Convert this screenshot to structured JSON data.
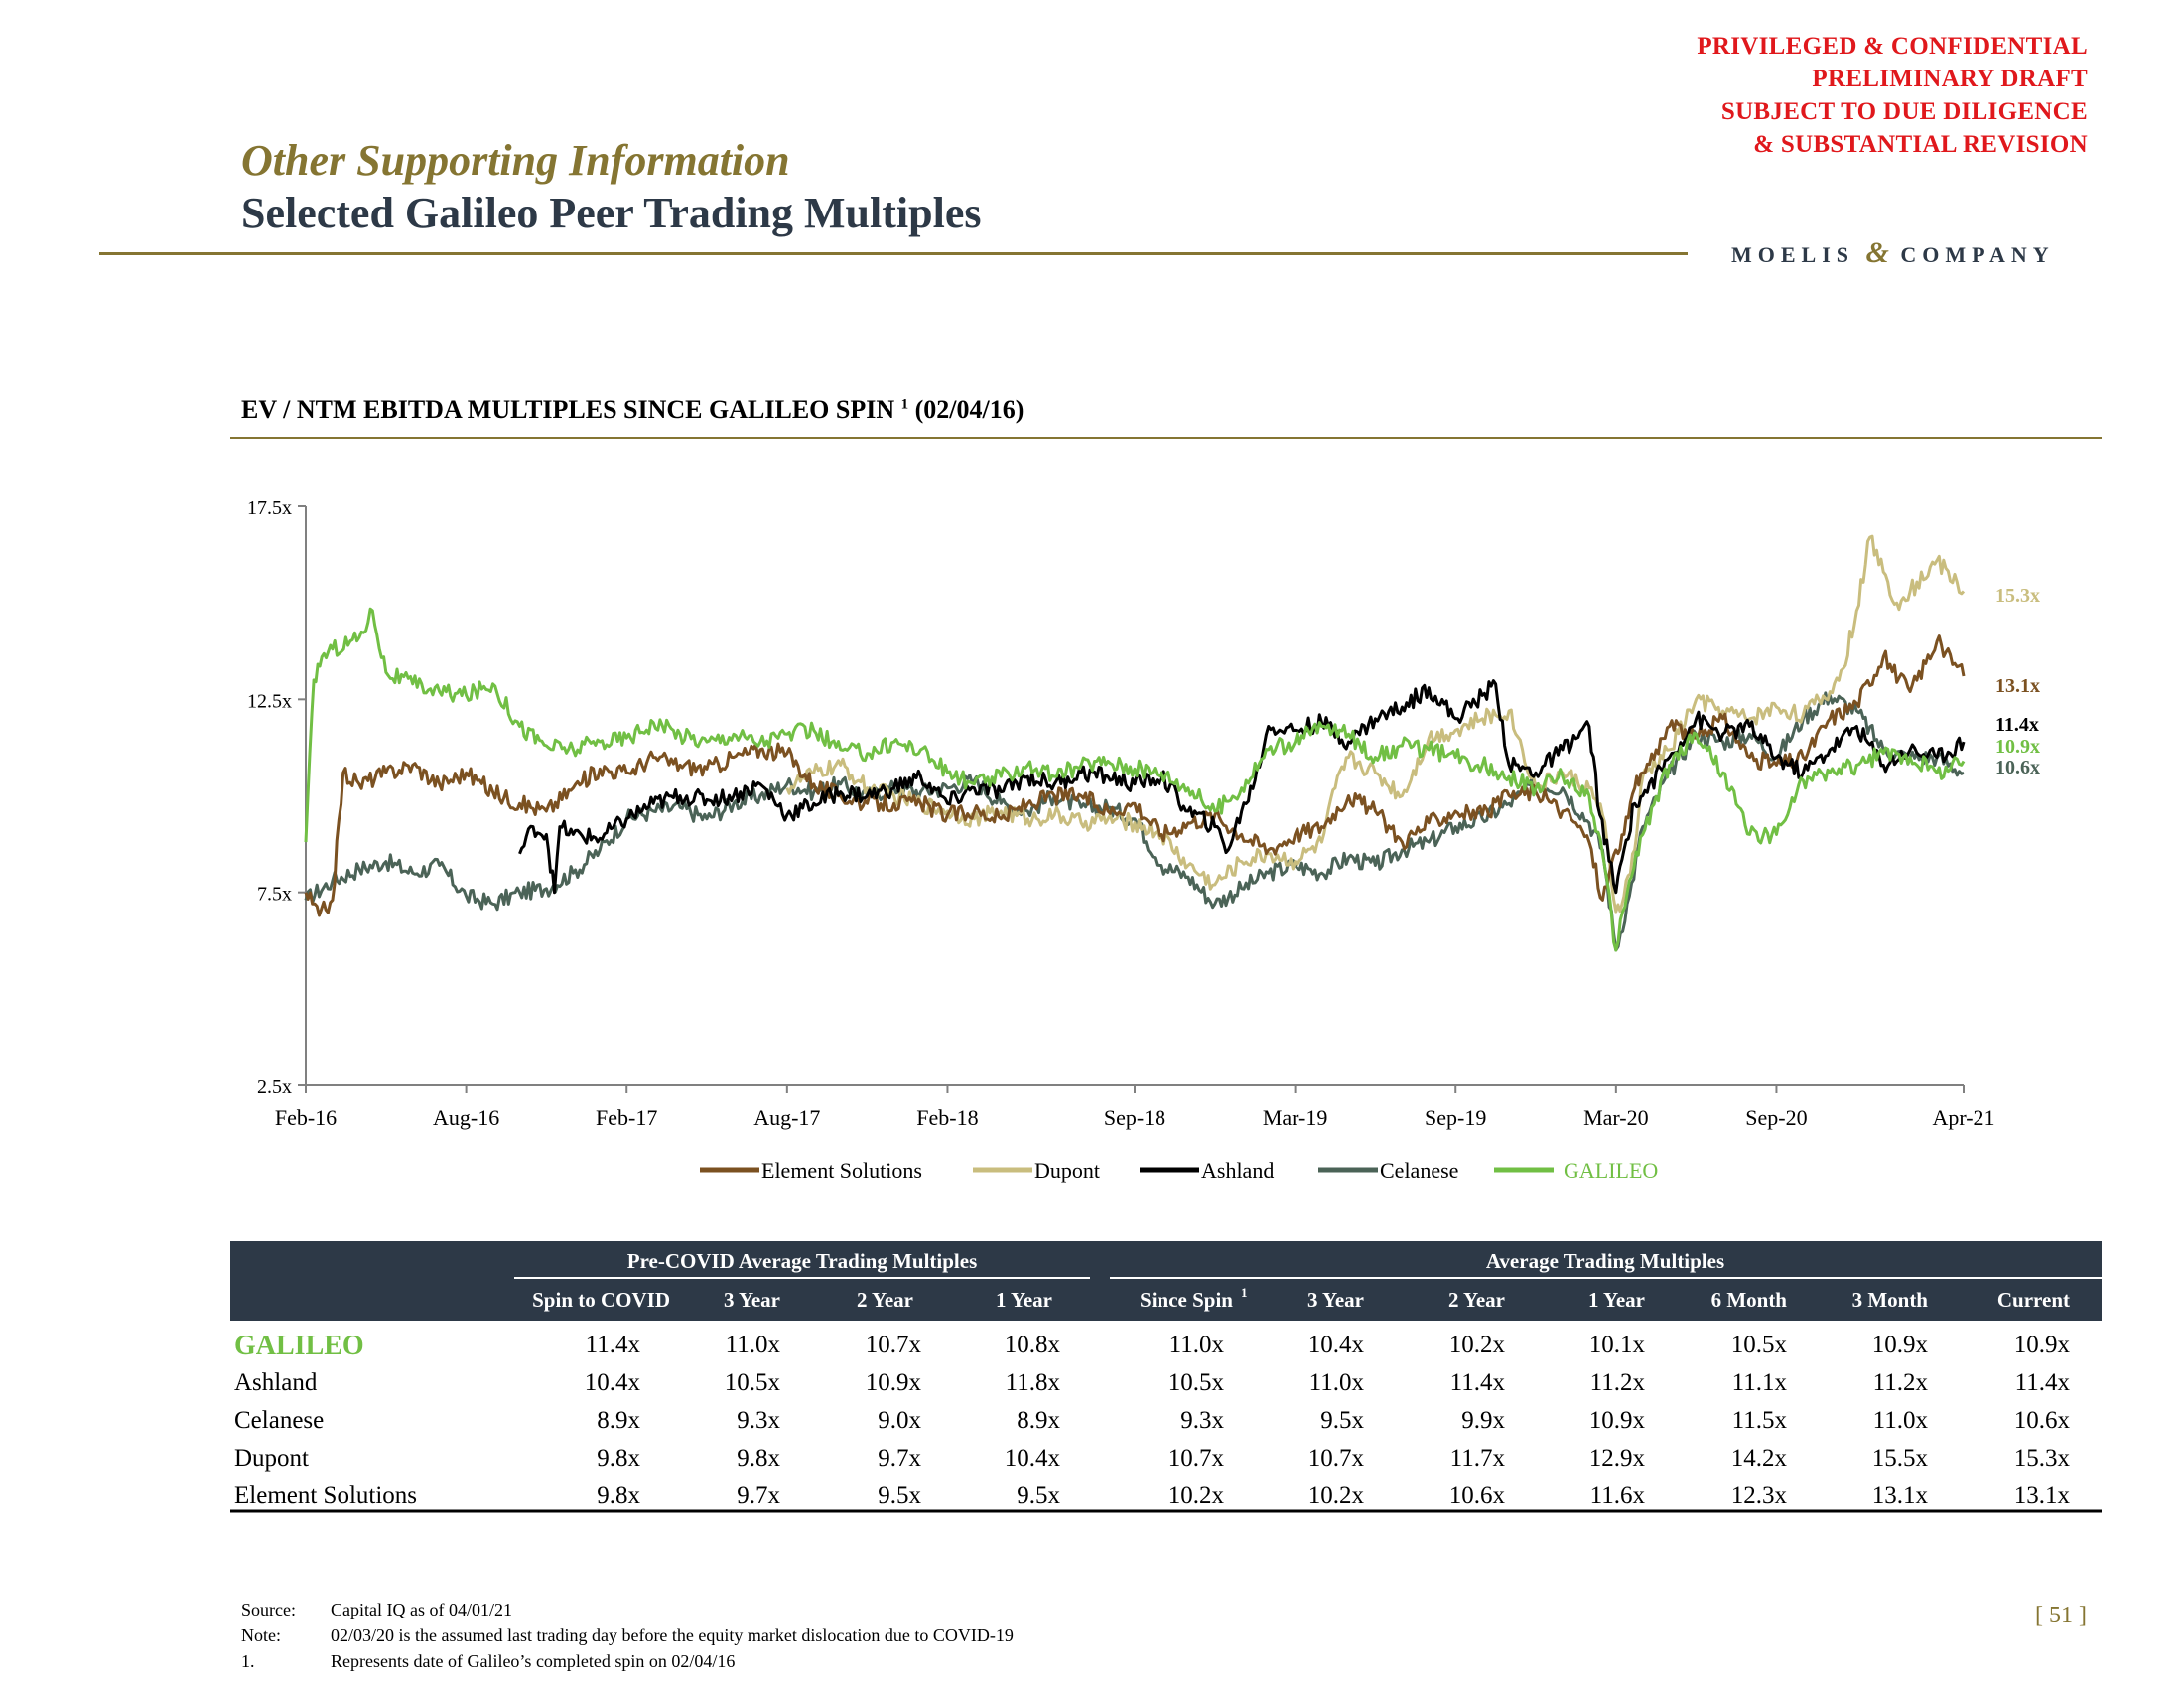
{
  "confidential": [
    "PRIVILEGED & CONFIDENTIAL",
    "PRELIMINARY DRAFT",
    "SUBJECT TO DUE DILIGENCE",
    "& SUBSTANTIAL REVISION"
  ],
  "header": {
    "subtitle": "Other Supporting Information",
    "title": "Selected Galileo Peer Trading Multiples",
    "logo_left": "MOELIS",
    "logo_amp": "&",
    "logo_right": "COMPANY"
  },
  "colors": {
    "element": "#7b5121",
    "dupont": "#c9bd7e",
    "ashland": "#000000",
    "celanese": "#4b6357",
    "galileo": "#71bf44",
    "gold": "#857532",
    "navy": "#2d3947",
    "red": "#e0181c"
  },
  "chart_data": {
    "type": "line",
    "title": "EV / NTM EBITDA MULTIPLES SINCE GALILEO SPIN",
    "title_sup": "1",
    "title_suffix": "(02/04/16)",
    "ylim": [
      2.5,
      17.5
    ],
    "yticks": [
      2.5,
      7.5,
      12.5,
      17.5
    ],
    "ytick_labels": [
      "2.5x",
      "7.5x",
      "12.5x",
      "17.5x"
    ],
    "xlim": [
      0,
      62
    ],
    "xticks": [
      0,
      6,
      12,
      18,
      24,
      31,
      37,
      43,
      49,
      55,
      62
    ],
    "xtick_labels": [
      "Feb-16",
      "Aug-16",
      "Feb-17",
      "Aug-17",
      "Feb-18",
      "Sep-18",
      "Mar-19",
      "Sep-19",
      "Mar-20",
      "Sep-20",
      "Apr-21"
    ],
    "series": [
      {
        "name": "Element Solutions",
        "color_key": "element",
        "end_label": "13.1x",
        "x": [
          0,
          0.5,
          1,
          1.4,
          2,
          3,
          4,
          5,
          6,
          7,
          8,
          9,
          10,
          11,
          12,
          13,
          14,
          15,
          16,
          17,
          18,
          19,
          20,
          21,
          22,
          23,
          24,
          25,
          26,
          27,
          28,
          29,
          30,
          31,
          32,
          33,
          34,
          35,
          36,
          37,
          38,
          39,
          40,
          41,
          42,
          43,
          44,
          45,
          46,
          47,
          47.5,
          48,
          48.5,
          49,
          49.3,
          49.7,
          50,
          50.5,
          51,
          52,
          53,
          54,
          55,
          56,
          57,
          58,
          59,
          60,
          61,
          62
        ],
        "y": [
          7.5,
          6.9,
          7.3,
          10.6,
          10.3,
          10.6,
          10.8,
          10.3,
          10.6,
          10.1,
          9.8,
          9.6,
          10.2,
          10.7,
          10.6,
          11.0,
          10.8,
          10.7,
          11.0,
          11.2,
          11.1,
          10.3,
          10.0,
          9.8,
          9.8,
          9.8,
          9.5,
          9.6,
          9.4,
          9.8,
          10.0,
          10.0,
          9.6,
          9.8,
          9.0,
          9.3,
          9.5,
          9.0,
          8.6,
          9.0,
          9.2,
          10.0,
          9.6,
          8.8,
          9.3,
          9.6,
          9.5,
          10.0,
          10.1,
          9.6,
          9.3,
          8.8,
          7.3,
          8.6,
          9.0,
          10.2,
          10.6,
          11.2,
          11.8,
          11.5,
          12.0,
          11.0,
          10.8,
          11.0,
          12.0,
          12.4,
          13.6,
          12.7,
          14.0,
          13.1
        ]
      },
      {
        "name": "Dupont",
        "color_key": "dupont",
        "end_label": "15.3x",
        "x": [
          18,
          19,
          20,
          21,
          22,
          23,
          24,
          25,
          26,
          27,
          28,
          29,
          30,
          31,
          32,
          33,
          34,
          35,
          36,
          37,
          38,
          38.5,
          39,
          40,
          41,
          42,
          43,
          44,
          45,
          46,
          47,
          48,
          48.5,
          49,
          49.3,
          49.7,
          50,
          51,
          52,
          53,
          54,
          55,
          56,
          57,
          57.5,
          58,
          58.5,
          59,
          59.5,
          60,
          61,
          62
        ],
        "y": [
          10.2,
          10.6,
          10.8,
          10.2,
          10.0,
          9.8,
          9.6,
          9.4,
          9.6,
          9.4,
          9.5,
          9.3,
          9.4,
          9.3,
          9.0,
          8.2,
          7.7,
          8.3,
          8.5,
          8.3,
          8.8,
          10.2,
          11.0,
          10.6,
          10.0,
          11.5,
          11.7,
          12.0,
          12.2,
          10.2,
          10.6,
          10.2,
          9.5,
          7.0,
          7.4,
          8.6,
          10.5,
          11.2,
          12.5,
          12.2,
          12.0,
          12.3,
          12.1,
          12.7,
          13.3,
          14.8,
          16.7,
          15.8,
          15.0,
          15.3,
          16.1,
          15.3
        ]
      },
      {
        "name": "Ashland",
        "color_key": "ashland",
        "end_label": "11.4x",
        "x": [
          8,
          8.5,
          9,
          9.3,
          9.5,
          10,
          11,
          12,
          13,
          14,
          15,
          16,
          17,
          18,
          19,
          20,
          21,
          22,
          23,
          24,
          25,
          26,
          27,
          28,
          29,
          30,
          31,
          32,
          33,
          34,
          34.5,
          35,
          35.5,
          36,
          37,
          38,
          39,
          40,
          41,
          42,
          43,
          44,
          44.5,
          45,
          46,
          47,
          48,
          48.4,
          49,
          49.3,
          49.7,
          50,
          51,
          52,
          53,
          54,
          55,
          56,
          57,
          58,
          59,
          60,
          61,
          62
        ],
        "y": [
          8.5,
          9.2,
          9.0,
          7.5,
          9.2,
          9.0,
          8.9,
          9.4,
          9.8,
          10.0,
          9.9,
          10.0,
          10.3,
          9.5,
          9.8,
          10.1,
          10.0,
          10.2,
          10.5,
          9.8,
          10.2,
          10.1,
          10.5,
          10.3,
          10.6,
          10.5,
          10.3,
          10.5,
          9.6,
          9.2,
          8.6,
          9.6,
          10.4,
          11.8,
          11.7,
          11.9,
          11.4,
          12.0,
          12.3,
          12.8,
          12.0,
          12.6,
          12.9,
          10.8,
          10.6,
          11.2,
          11.8,
          9.5,
          7.5,
          8.6,
          9.8,
          10.0,
          11.0,
          12.0,
          11.6,
          11.8,
          11.0,
          10.6,
          11.2,
          11.8,
          10.8,
          11.2,
          11.0,
          11.4
        ]
      },
      {
        "name": "Celanese",
        "color_key": "celanese",
        "end_label": "10.6x",
        "x": [
          0,
          1,
          2,
          3,
          4,
          5,
          6,
          7,
          8,
          9,
          10,
          11,
          12,
          13,
          14,
          15,
          16,
          17,
          18,
          19,
          20,
          21,
          22,
          23,
          24,
          25,
          26,
          27,
          28,
          29,
          30,
          31,
          32,
          33,
          34,
          35,
          36,
          37,
          38,
          39,
          40,
          41,
          42,
          43,
          44,
          45,
          46,
          47,
          48,
          48.5,
          49,
          49.5,
          50,
          51,
          52,
          53,
          54,
          55,
          56,
          57,
          58,
          59,
          60,
          61,
          62
        ],
        "y": [
          7.3,
          7.8,
          8.1,
          8.3,
          8.0,
          8.2,
          7.4,
          7.2,
          7.5,
          7.6,
          8.0,
          8.6,
          9.4,
          9.6,
          9.7,
          9.4,
          9.8,
          10.0,
          10.3,
          10.1,
          10.3,
          10.0,
          10.2,
          10.1,
          10.2,
          10.4,
          9.8,
          9.6,
          10.0,
          9.7,
          9.7,
          9.4,
          8.2,
          7.9,
          7.2,
          7.6,
          8.0,
          8.2,
          8.0,
          8.4,
          8.2,
          8.6,
          8.8,
          9.2,
          9.4,
          9.8,
          10.3,
          10.2,
          9.3,
          8.6,
          6.0,
          7.4,
          9.2,
          10.6,
          11.6,
          11.4,
          11.6,
          11.0,
          12.0,
          12.6,
          12.2,
          11.2,
          11.0,
          11.0,
          10.6
        ]
      },
      {
        "name": "GALILEO",
        "color_key": "galileo",
        "end_label": "10.9x",
        "x": [
          0,
          0.3,
          0.6,
          1,
          2,
          2.5,
          3,
          4,
          5,
          6,
          7,
          8,
          9,
          10,
          11,
          12,
          13,
          14,
          15,
          16,
          17,
          18,
          19,
          20,
          21,
          22,
          23,
          24,
          25,
          26,
          27,
          28,
          29,
          30,
          31,
          32,
          33,
          34,
          35,
          36,
          37,
          38,
          39,
          40,
          41,
          42,
          43,
          44,
          45,
          46,
          47,
          48,
          48.5,
          49,
          49.5,
          50,
          51,
          52,
          53,
          54,
          55,
          56,
          57,
          58,
          59,
          60,
          61,
          62
        ],
        "y": [
          8.8,
          13.0,
          13.6,
          13.8,
          14.1,
          14.8,
          13.2,
          12.9,
          12.7,
          12.6,
          12.9,
          11.8,
          11.3,
          11.2,
          11.4,
          11.5,
          11.9,
          11.6,
          11.4,
          11.6,
          11.4,
          11.6,
          11.7,
          11.2,
          11.1,
          11.4,
          11.2,
          10.6,
          10.3,
          10.5,
          10.8,
          10.5,
          10.8,
          10.9,
          10.7,
          10.6,
          10.2,
          9.6,
          10.2,
          11.2,
          11.4,
          11.8,
          11.6,
          11.0,
          11.3,
          11.2,
          11.0,
          10.8,
          10.5,
          10.2,
          10.5,
          10.0,
          8.5,
          6.0,
          7.8,
          9.0,
          10.8,
          11.6,
          10.6,
          9.0,
          9.0,
          10.4,
          10.6,
          10.8,
          11.1,
          11.0,
          10.6,
          10.9
        ]
      }
    ],
    "legend_position": "bottom"
  },
  "table": {
    "group1_label": "Pre-COVID Average Trading Multiples",
    "group2_label": "Average Trading Multiples",
    "columns": [
      "Spin to COVID",
      "3 Year",
      "2 Year",
      "1 Year",
      "Since Spin",
      "3 Year",
      "2 Year",
      "1 Year",
      "6 Month",
      "3 Month",
      "Current"
    ],
    "since_spin_sup": "1",
    "rows": [
      {
        "name": "GALILEO",
        "values": [
          "11.4x",
          "11.0x",
          "10.7x",
          "10.8x",
          "11.0x",
          "10.4x",
          "10.2x",
          "10.1x",
          "10.5x",
          "10.9x",
          "10.9x"
        ]
      },
      {
        "name": "Ashland",
        "values": [
          "10.4x",
          "10.5x",
          "10.9x",
          "11.8x",
          "10.5x",
          "11.0x",
          "11.4x",
          "11.2x",
          "11.1x",
          "11.2x",
          "11.4x"
        ]
      },
      {
        "name": "Celanese",
        "values": [
          "8.9x",
          "9.3x",
          "9.0x",
          "8.9x",
          "9.3x",
          "9.5x",
          "9.9x",
          "10.9x",
          "11.5x",
          "11.0x",
          "10.6x"
        ]
      },
      {
        "name": "Dupont",
        "values": [
          "9.8x",
          "9.8x",
          "9.7x",
          "10.4x",
          "10.7x",
          "10.7x",
          "11.7x",
          "12.9x",
          "14.2x",
          "15.5x",
          "15.3x"
        ]
      },
      {
        "name": "Element Solutions",
        "values": [
          "9.8x",
          "9.7x",
          "9.5x",
          "9.5x",
          "10.2x",
          "10.2x",
          "10.6x",
          "11.6x",
          "12.3x",
          "13.1x",
          "13.1x"
        ]
      }
    ]
  },
  "footer": {
    "source_label": "Source:",
    "source_text": "Capital IQ as of 04/01/21",
    "note_label": "Note:",
    "note_text": "02/03/20 is the assumed last trading day before the equity market dislocation due to COVID-19",
    "fn_label": "1.",
    "fn_text": "Represents date of Galileo’s completed spin on 02/04/16"
  },
  "page_number": "[ 51 ]"
}
